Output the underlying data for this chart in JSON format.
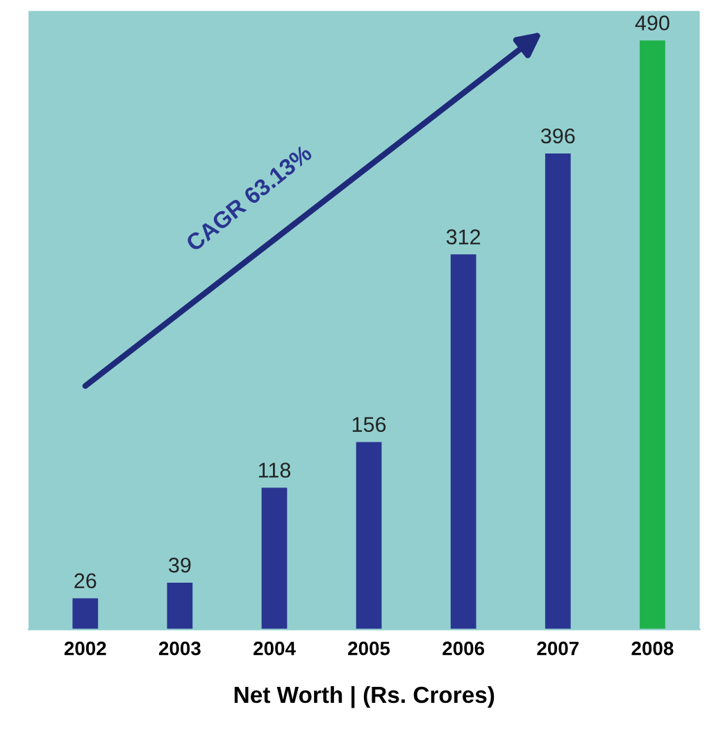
{
  "chart_data": {
    "type": "bar",
    "xlabel": "Net Worth | (Rs. Crores)",
    "categories": [
      "2002",
      "2003",
      "2004",
      "2005",
      "2006",
      "2007",
      "2008"
    ],
    "values": [
      26,
      39,
      118,
      156,
      312,
      396,
      490
    ],
    "colors": [
      "#2a3591",
      "#2a3591",
      "#2a3591",
      "#2a3591",
      "#2a3591",
      "#2a3591",
      "#1fb24a"
    ],
    "data_labels": true,
    "grid": false,
    "legend": false,
    "annotations": [
      "CAGR 63.13%"
    ]
  }
}
